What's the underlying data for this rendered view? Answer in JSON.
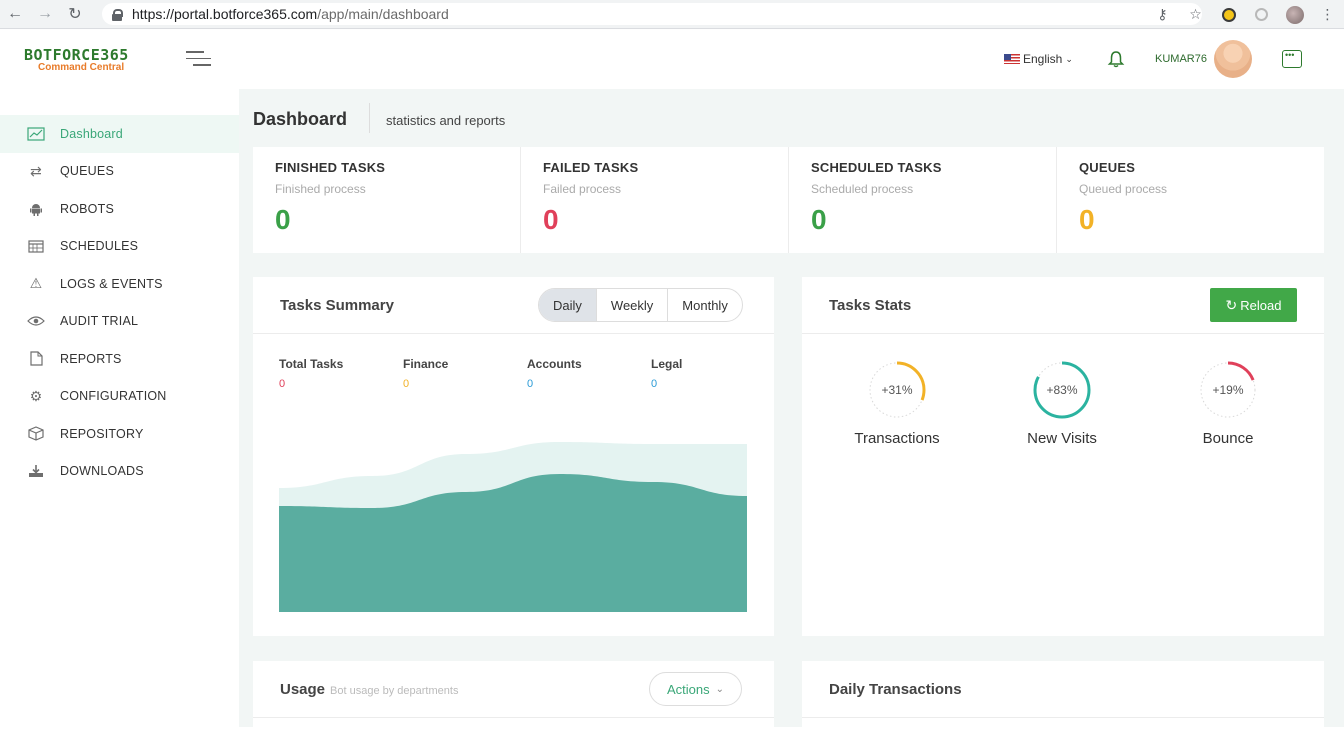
{
  "browser": {
    "url_domain": "https://portal.botforce365.com",
    "url_path": "/app/main/dashboard"
  },
  "header": {
    "logo_main": "BOTFORCE365",
    "logo_sub": "Command Central",
    "language": "English",
    "username": "KUMAR76"
  },
  "sidebar": {
    "items": [
      {
        "label": "Dashboard",
        "icon": "chart-icon"
      },
      {
        "label": "QUEUES",
        "icon": "arrows-icon"
      },
      {
        "label": "ROBOTS",
        "icon": "android-icon"
      },
      {
        "label": "SCHEDULES",
        "icon": "calendar-icon"
      },
      {
        "label": "LOGS & EVENTS",
        "icon": "warning-icon"
      },
      {
        "label": "AUDIT TRIAL",
        "icon": "eye-icon"
      },
      {
        "label": "REPORTS",
        "icon": "document-icon"
      },
      {
        "label": "CONFIGURATION",
        "icon": "gear-icon"
      },
      {
        "label": "REPOSITORY",
        "icon": "box-icon"
      },
      {
        "label": "DOWNLOADS",
        "icon": "download-icon"
      }
    ]
  },
  "page": {
    "title": "Dashboard",
    "subtitle": "statistics and reports"
  },
  "stats": [
    {
      "title": "FINISHED TASKS",
      "sub": "Finished process",
      "value": "0",
      "color": "#3aa048"
    },
    {
      "title": "FAILED TASKS",
      "sub": "Failed process",
      "value": "0",
      "color": "#e0405a"
    },
    {
      "title": "SCHEDULED TASKS",
      "sub": "Scheduled process",
      "value": "0",
      "color": "#3aa048"
    },
    {
      "title": "QUEUES",
      "sub": "Queued process",
      "value": "0",
      "color": "#f2b227"
    }
  ],
  "tasks_summary": {
    "title": "Tasks Summary",
    "tabs": [
      "Daily",
      "Weekly",
      "Monthly"
    ],
    "legend": [
      {
        "label": "Total Tasks",
        "value": "0",
        "color": "#e0405a"
      },
      {
        "label": "Finance",
        "value": "0",
        "color": "#f2b227"
      },
      {
        "label": "Accounts",
        "value": "0",
        "color": "#2b9bd6"
      },
      {
        "label": "Legal",
        "value": "0",
        "color": "#2b9bd6"
      }
    ]
  },
  "chart_data": {
    "type": "area",
    "x": [
      0,
      1,
      2,
      3,
      4,
      5
    ],
    "series": [
      {
        "values": [
          62,
          68,
          79,
          85,
          84,
          84
        ],
        "color": "#e4f3f1"
      },
      {
        "values": [
          53,
          52,
          60,
          69,
          65,
          58
        ],
        "color": "#5aada0"
      }
    ],
    "ylim": [
      0,
      100
    ]
  },
  "tasks_stats": {
    "title": "Tasks Stats",
    "reload_label": "Reload",
    "gauges": [
      {
        "label": "Transactions",
        "value_text": "+31%",
        "value": 31,
        "color": "#f2b227"
      },
      {
        "label": "New Visits",
        "value_text": "+83%",
        "value": 83,
        "color": "#2bb3a0"
      },
      {
        "label": "Bounce",
        "value_text": "+19%",
        "value": 19,
        "color": "#e0405a"
      }
    ]
  },
  "usage": {
    "title": "Usage",
    "subtitle": "Bot usage by departments",
    "actions_label": "Actions"
  },
  "daily_transactions": {
    "title": "Daily Transactions"
  }
}
